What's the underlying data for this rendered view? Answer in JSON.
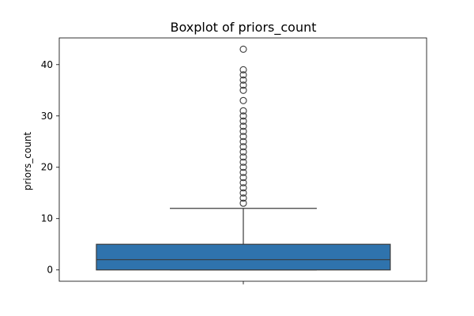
{
  "chart_data": {
    "type": "boxplot",
    "title": "Boxplot of priors_count",
    "xlabel": "",
    "ylabel": "priors_count",
    "ylim": [
      -2.2,
      45.2
    ],
    "yticks": [
      0,
      10,
      20,
      30,
      40
    ],
    "grid": false,
    "legend": "none",
    "box": {
      "min": 0,
      "q1": 0,
      "median": 2,
      "q3": 5,
      "whisker_low": 0,
      "whisker_high": 12,
      "color": "#2f73ad"
    },
    "outliers": [
      13,
      14,
      15,
      16,
      17,
      18,
      19,
      20,
      21,
      22,
      23,
      24,
      25,
      26,
      27,
      28,
      29,
      30,
      31,
      33,
      35,
      36,
      37,
      38,
      39,
      43
    ]
  }
}
